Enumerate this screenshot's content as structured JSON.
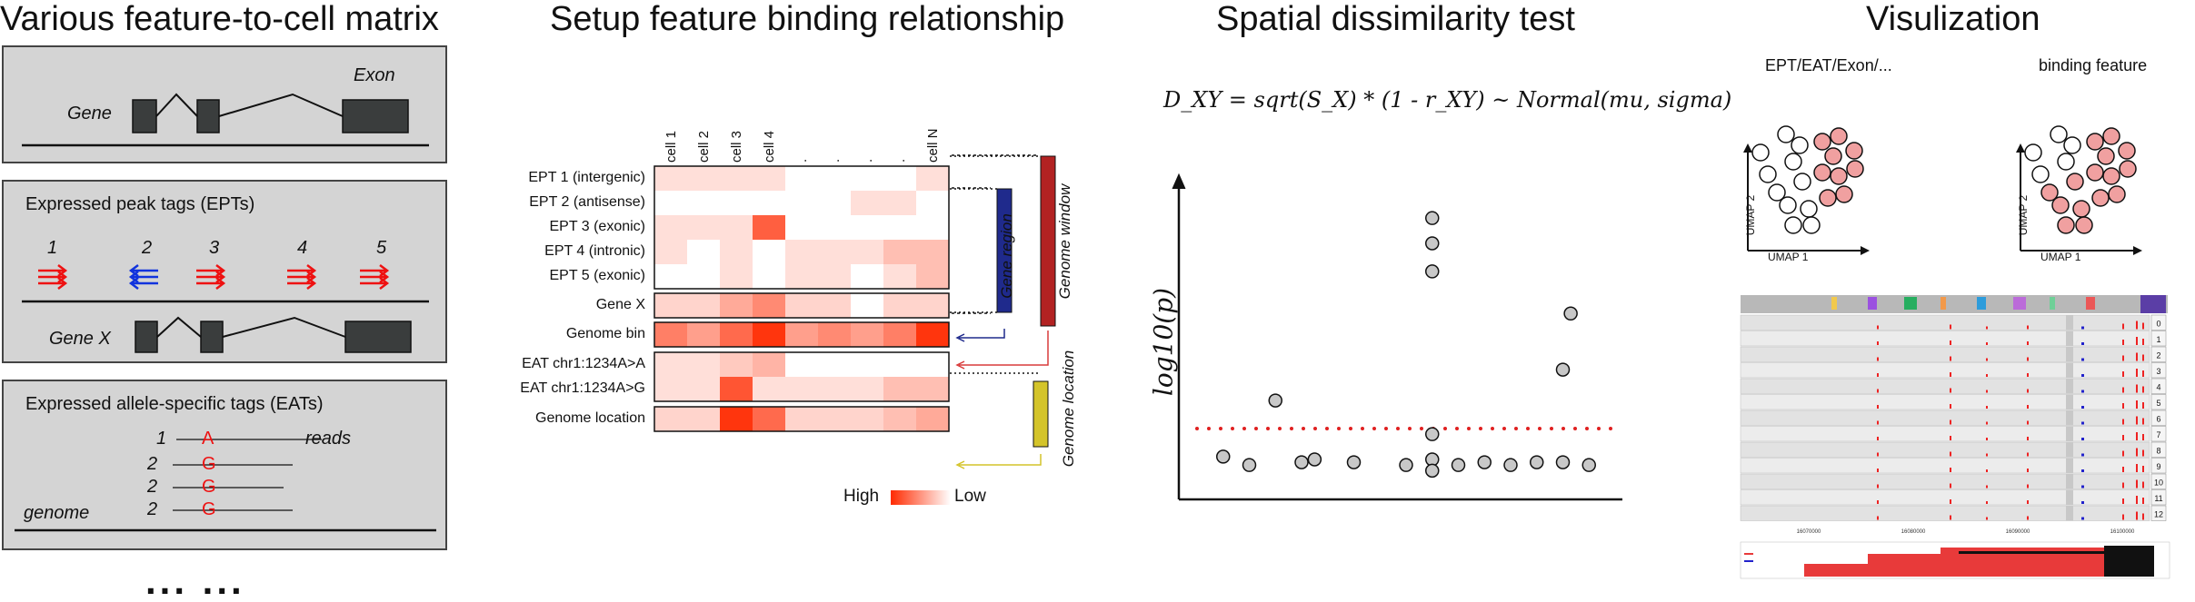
{
  "sections": {
    "matrix_title": "Various feature-to-cell matrix",
    "binding_title": "Setup feature binding relationship",
    "test_title": "Spatial dissimilarity test",
    "viz_title": "Visulization"
  },
  "panel1": {
    "gene": "Gene",
    "exon": "Exon"
  },
  "panel2": {
    "title": "Expressed peak tags (EPTs)",
    "numbers": [
      "1",
      "2",
      "3",
      "4",
      "5"
    ],
    "gene": "Gene X"
  },
  "panel3": {
    "title": "Expressed allele-specific tags (EATs)",
    "counts": [
      "1",
      "2",
      "2",
      "2"
    ],
    "alleles": [
      "A",
      "G",
      "G",
      "G"
    ],
    "reads": "reads",
    "genome": "genome"
  },
  "ellipsis": "... ...",
  "heatmap": {
    "columns": [
      "cell 1",
      "cell 2",
      "cell 3",
      "cell 4",
      ".",
      ".",
      ".",
      ".",
      "cell N"
    ],
    "rows": [
      "EPT 1 (intergenic)",
      "EPT 2 (antisense)",
      "EPT 3 (exonic)",
      "EPT 4 (intronic)",
      "EPT 5 (exonic)",
      "Gene X",
      "Genome bin",
      "EAT chr1:1234A>A",
      "EAT chr1:1234A>G",
      "Genome location"
    ],
    "values": [
      [
        0.15,
        0.15,
        0.15,
        0.15,
        0.0,
        0.0,
        0.0,
        0.0,
        0.15
      ],
      [
        0.0,
        0.0,
        0.0,
        0.0,
        0.0,
        0.0,
        0.15,
        0.15,
        0.0
      ],
      [
        0.15,
        0.15,
        0.15,
        0.75,
        0.0,
        0.0,
        0.0,
        0.0,
        0.0
      ],
      [
        0.15,
        0.0,
        0.15,
        0.0,
        0.15,
        0.15,
        0.15,
        0.3,
        0.3
      ],
      [
        0.0,
        0.0,
        0.15,
        0.0,
        0.15,
        0.15,
        0.0,
        0.15,
        0.3
      ],
      [
        0.2,
        0.2,
        0.4,
        0.55,
        0.2,
        0.2,
        0.0,
        0.2,
        0.2
      ],
      [
        0.6,
        0.45,
        0.7,
        0.95,
        0.45,
        0.55,
        0.45,
        0.6,
        0.95
      ],
      [
        0.15,
        0.15,
        0.25,
        0.35,
        0.0,
        0.0,
        0.0,
        0.0,
        0.0
      ],
      [
        0.15,
        0.15,
        0.8,
        0.15,
        0.15,
        0.15,
        0.15,
        0.3,
        0.3
      ],
      [
        0.2,
        0.2,
        0.95,
        0.7,
        0.2,
        0.2,
        0.2,
        0.3,
        0.4
      ]
    ],
    "legend_high": "High",
    "legend_low": "Low",
    "gene_region": "Gene region",
    "genome_window": "Genome window",
    "genome_location": "Genome location",
    "colors": {
      "gene_region": "#1f2a8c",
      "genome_window": "#b22222",
      "genome_location": "#d4c42a",
      "high": "#ff2a00",
      "low": "#ffffff"
    }
  },
  "formula": "D_XY = sqrt(S_X) * (1 - r_XY) ~ Normal(mu, sigma)",
  "chart_data": {
    "type": "scatter",
    "ylabel": "log10(p)",
    "x": [
      1,
      2,
      3,
      4,
      4.5,
      6,
      8,
      9,
      9,
      10,
      11,
      12,
      13,
      14,
      15
    ],
    "y": [
      1.2,
      0.9,
      3.2,
      1.0,
      1.1,
      1.0,
      0.9,
      1.1,
      0.7,
      0.9,
      1.0,
      0.9,
      1.0,
      1.0,
      0.9
    ],
    "extra_points": [
      {
        "x": 9,
        "y": 9.7
      },
      {
        "x": 9,
        "y": 8.8
      },
      {
        "x": 9,
        "y": 7.8
      },
      {
        "x": 9,
        "y": 2.0
      },
      {
        "x": 14.3,
        "y": 6.3
      },
      {
        "x": 14,
        "y": 4.3
      }
    ],
    "threshold": 2.2
  },
  "umap": {
    "left_title": "EPT/EAT/Exon/...",
    "right_title": "binding feature",
    "xlabel": "UMAP 1",
    "ylabel": "UMAP 2"
  },
  "browser": {
    "tracks": [
      "0",
      "1",
      "2",
      "3",
      "4",
      "5",
      "6",
      "7",
      "8",
      "9",
      "10",
      "11",
      "12"
    ],
    "xticks": [
      "16070000",
      "16080000",
      "16090000",
      "16100000"
    ]
  }
}
